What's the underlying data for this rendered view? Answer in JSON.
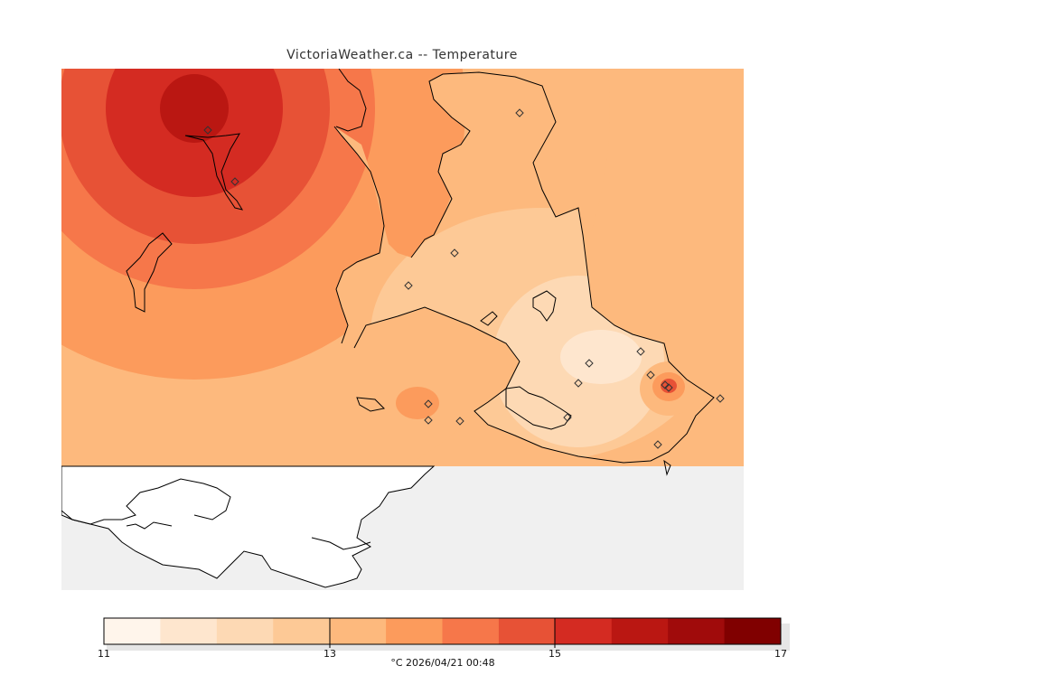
{
  "title": "VictoriaWeather.ca -- Temperature",
  "legend": {
    "min": 11,
    "max": 17,
    "tick_labels": [
      "11",
      "13",
      "15",
      "17"
    ],
    "colors": [
      "#fff5eb",
      "#fee6ce",
      "#fdd9b4",
      "#fdc996",
      "#fdb97d",
      "#fc9b5c",
      "#f6774a",
      "#e75236",
      "#d42b22",
      "#ba1712",
      "#a00b0b",
      "#800000"
    ]
  },
  "footer": "°C  2026/04/21 00:48",
  "colors": {
    "water": "#f0f0f0",
    "land_outside_grid": "#ffffff",
    "coastline": "#000000"
  }
}
